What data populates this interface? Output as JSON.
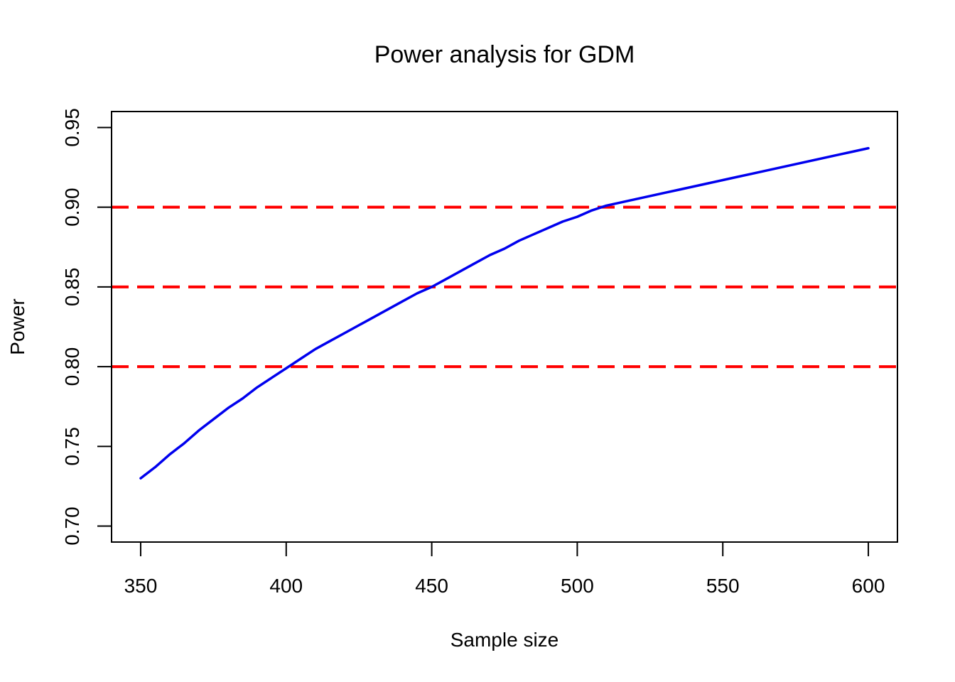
{
  "chart_data": {
    "type": "line",
    "title": "Power analysis for GDM",
    "xlabel": "Sample size",
    "ylabel": "Power",
    "xlim": [
      350,
      600
    ],
    "ylim": [
      0.7,
      0.95
    ],
    "x_ticks": [
      "350",
      "400",
      "450",
      "500",
      "550",
      "600"
    ],
    "y_ticks": [
      "0.70",
      "0.75",
      "0.80",
      "0.85",
      "0.90",
      "0.95"
    ],
    "grid": false,
    "legend": "none",
    "series": [
      {
        "color": "#0000ee",
        "style": "solid",
        "x": [
          350,
          355,
          360,
          365,
          370,
          375,
          380,
          385,
          390,
          395,
          400,
          405,
          410,
          415,
          420,
          425,
          430,
          435,
          440,
          445,
          450,
          455,
          460,
          465,
          470,
          475,
          480,
          485,
          490,
          495,
          500,
          505,
          510,
          515,
          520,
          525,
          530,
          535,
          540,
          545,
          550,
          555,
          560,
          565,
          570,
          575,
          580,
          585,
          590,
          595,
          600
        ],
        "values": [
          0.73,
          0.737,
          0.745,
          0.752,
          0.76,
          0.767,
          0.774,
          0.78,
          0.787,
          0.793,
          0.799,
          0.805,
          0.811,
          0.816,
          0.821,
          0.826,
          0.831,
          0.836,
          0.841,
          0.846,
          0.85,
          0.855,
          0.86,
          0.865,
          0.87,
          0.874,
          0.879,
          0.883,
          0.887,
          0.891,
          0.894,
          0.898,
          0.901,
          0.903,
          0.905,
          0.907,
          0.909,
          0.911,
          0.913,
          0.915,
          0.917,
          0.919,
          0.921,
          0.923,
          0.925,
          0.927,
          0.929,
          0.931,
          0.933,
          0.935,
          0.937
        ]
      }
    ],
    "reference_lines": [
      {
        "y": 0.8,
        "color": "#ff0000",
        "style": "dashed"
      },
      {
        "y": 0.85,
        "color": "#ff0000",
        "style": "dashed"
      },
      {
        "y": 0.9,
        "color": "#ff0000",
        "style": "dashed"
      }
    ]
  }
}
